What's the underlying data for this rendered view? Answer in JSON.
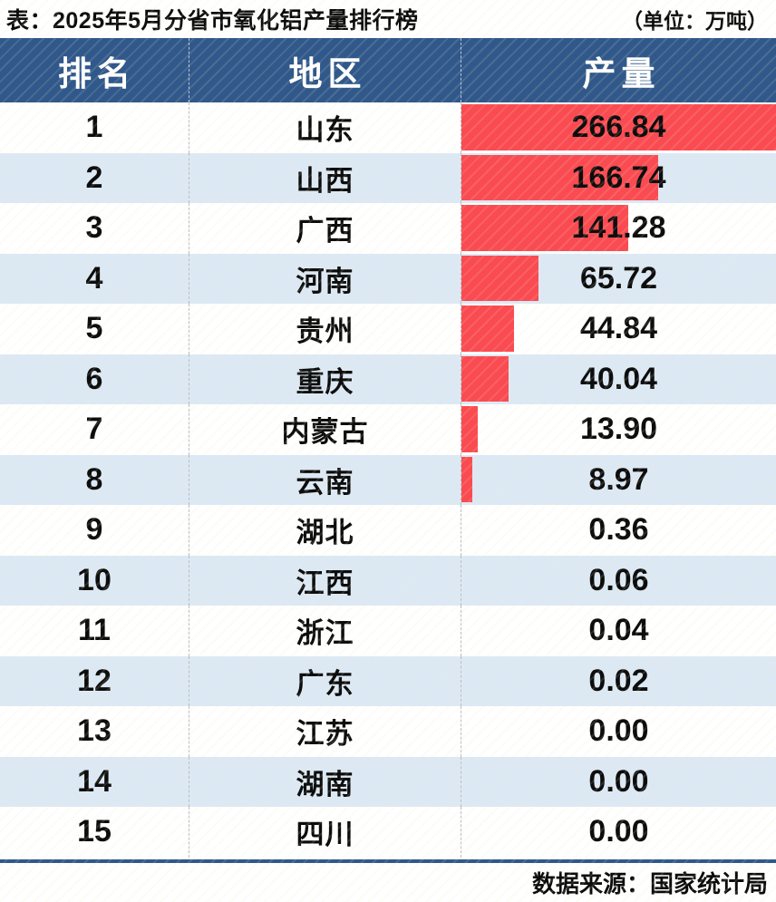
{
  "title": "表：2025年5月分省市氧化铝产量排行榜",
  "unit_label": "（单位：万吨）",
  "source_label": "数据来源：国家统计局",
  "colors": {
    "header_bg": "#30588B",
    "alt_row_bg": "#DCE9F5",
    "bar": "#FA4B52",
    "rule": "#30588B"
  },
  "table": {
    "headers": [
      "排名",
      "地区",
      "产量"
    ],
    "rows": [
      {
        "rank": "1",
        "region": "山东",
        "value": "266.84"
      },
      {
        "rank": "2",
        "region": "山西",
        "value": "166.74"
      },
      {
        "rank": "3",
        "region": "广西",
        "value": "141.28"
      },
      {
        "rank": "4",
        "region": "河南",
        "value": "65.72"
      },
      {
        "rank": "5",
        "region": "贵州",
        "value": "44.84"
      },
      {
        "rank": "6",
        "region": "重庆",
        "value": "40.04"
      },
      {
        "rank": "7",
        "region": "内蒙古",
        "value": "13.90"
      },
      {
        "rank": "8",
        "region": "云南",
        "value": "8.97"
      },
      {
        "rank": "9",
        "region": "湖北",
        "value": "0.36"
      },
      {
        "rank": "10",
        "region": "江西",
        "value": "0.06"
      },
      {
        "rank": "11",
        "region": "浙江",
        "value": "0.04"
      },
      {
        "rank": "12",
        "region": "广东",
        "value": "0.02"
      },
      {
        "rank": "13",
        "region": "江苏",
        "value": "0.00"
      },
      {
        "rank": "14",
        "region": "湖南",
        "value": "0.00"
      },
      {
        "rank": "15",
        "region": "四川",
        "value": "0.00"
      }
    ]
  },
  "chart_data": {
    "type": "bar",
    "orientation": "horizontal",
    "title": "2025年5月分省市氧化铝产量排行榜",
    "unit": "万吨",
    "categories": [
      "山东",
      "山西",
      "广西",
      "河南",
      "贵州",
      "重庆",
      "内蒙古",
      "云南",
      "湖北",
      "江西",
      "浙江",
      "广东",
      "江苏",
      "湖南",
      "四川"
    ],
    "values": [
      266.84,
      166.74,
      141.28,
      65.72,
      44.84,
      40.04,
      13.9,
      8.97,
      0.36,
      0.06,
      0.04,
      0.02,
      0.0,
      0.0,
      0.0
    ],
    "max_value": 266.84,
    "bar_color": "#FA4B52",
    "source": "国家统计局"
  }
}
